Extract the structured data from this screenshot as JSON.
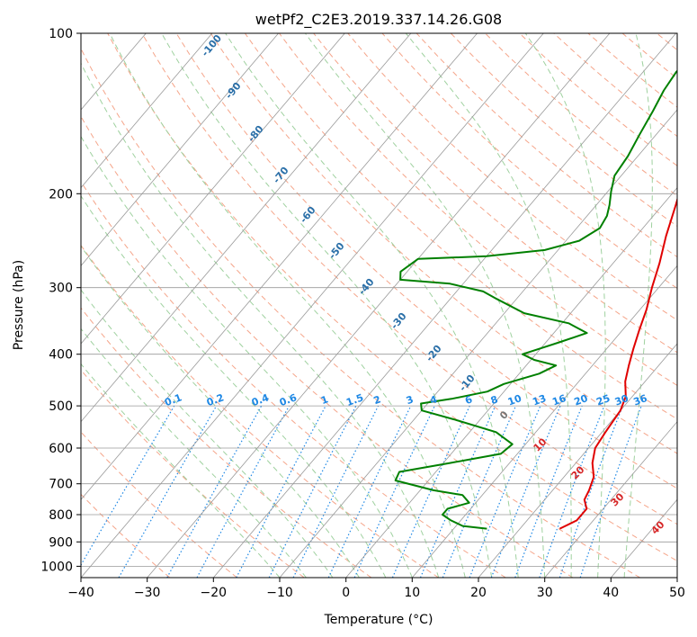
{
  "chart_data": {
    "type": "line",
    "title": "wetPf2_C2E3.2019.337.14.26.G08",
    "xlabel": "Temperature (°C)",
    "ylabel": "Pressure (hPa)",
    "xlim": [
      -40,
      50
    ],
    "ylim": [
      1050,
      100
    ],
    "y_scale": "log",
    "x_ticks": [
      -40,
      -30,
      -20,
      -10,
      0,
      10,
      20,
      30,
      40,
      50
    ],
    "y_ticks": [
      100,
      200,
      300,
      400,
      500,
      600,
      700,
      800,
      900,
      1000
    ],
    "grid": true,
    "series": [
      {
        "color": "#e00000",
        "points": [
          [
            26.0,
            850
          ],
          [
            27.5,
            820
          ],
          [
            27.5,
            780
          ],
          [
            26.0,
            750
          ],
          [
            25.5,
            720
          ],
          [
            24.5,
            680
          ],
          [
            22.5,
            640
          ],
          [
            21.0,
            600
          ],
          [
            20.5,
            560
          ],
          [
            20.0,
            510
          ],
          [
            19.0,
            480
          ],
          [
            17.0,
            450
          ],
          [
            15.5,
            420
          ],
          [
            14.0,
            390
          ],
          [
            12.5,
            360
          ],
          [
            11.0,
            330
          ],
          [
            9.0,
            300
          ],
          [
            7.0,
            270
          ],
          [
            4.5,
            240
          ],
          [
            2.0,
            210
          ],
          [
            -1.0,
            180
          ],
          [
            -3.0,
            160
          ],
          [
            -5.0,
            140
          ],
          [
            -5.5,
            125
          ],
          [
            -5.0,
            113
          ],
          [
            -4.0,
            105
          ],
          [
            -3.5,
            100
          ]
        ]
      },
      {
        "color": "#008000",
        "points": [
          [
            15.0,
            850
          ],
          [
            11.0,
            840
          ],
          [
            8.5,
            820
          ],
          [
            6.5,
            800
          ],
          [
            6.5,
            780
          ],
          [
            9.0,
            760
          ],
          [
            7.0,
            735
          ],
          [
            2.0,
            720
          ],
          [
            -5.0,
            690
          ],
          [
            -5.5,
            665
          ],
          [
            1.0,
            640
          ],
          [
            7.5,
            615
          ],
          [
            8.0,
            590
          ],
          [
            4.0,
            560
          ],
          [
            -4.0,
            530
          ],
          [
            -10.0,
            510
          ],
          [
            -11.0,
            495
          ],
          [
            -7.0,
            485
          ],
          [
            -2.5,
            470
          ],
          [
            -1.0,
            455
          ],
          [
            3.0,
            435
          ],
          [
            4.5,
            420
          ],
          [
            0.5,
            410
          ],
          [
            -2.0,
            400
          ],
          [
            2.0,
            380
          ],
          [
            5.0,
            365
          ],
          [
            1.0,
            350
          ],
          [
            -7.0,
            335
          ],
          [
            -13.0,
            315
          ],
          [
            -16.0,
            305
          ],
          [
            -22.0,
            295
          ],
          [
            -30.0,
            290
          ],
          [
            -31.0,
            280
          ],
          [
            -30.0,
            265
          ],
          [
            -20.0,
            262
          ],
          [
            -12.0,
            255
          ],
          [
            -8.0,
            245
          ],
          [
            -6.5,
            232
          ],
          [
            -7.0,
            220
          ],
          [
            -8.0,
            210
          ],
          [
            -9.5,
            198
          ],
          [
            -11.0,
            185
          ],
          [
            -11.5,
            170
          ],
          [
            -12.5,
            155
          ],
          [
            -13.5,
            140
          ],
          [
            -14.5,
            128
          ],
          [
            -15.0,
            118
          ],
          [
            -14.0,
            110
          ],
          [
            -12.5,
            104
          ],
          [
            -12.0,
            100
          ]
        ]
      }
    ],
    "dry_adiabat_labels": [
      "-100",
      "-90",
      "-80",
      "-70",
      "-60",
      "-50",
      "-40",
      "-30",
      "-20",
      "-10"
    ],
    "moist_adiabat_labels": [
      "0",
      "10",
      "20",
      "30",
      "40"
    ],
    "mixing_ratio_labels": [
      "0.1",
      "0.2",
      "0.4",
      "0.6",
      "1",
      "1.5",
      "2",
      "3",
      "4",
      "6",
      "8",
      "10",
      "13",
      "16",
      "20",
      "25",
      "30",
      "36"
    ]
  },
  "colors": {
    "isotherm": "#9a9a9a",
    "isobar": "#9a9a9a",
    "dry_adiabat": "#f5a58a",
    "moist_adiabat": "#9fd19f",
    "mixing_ratio": "#1e88e5",
    "temperature": "#e00000",
    "dewpoint": "#008000"
  }
}
